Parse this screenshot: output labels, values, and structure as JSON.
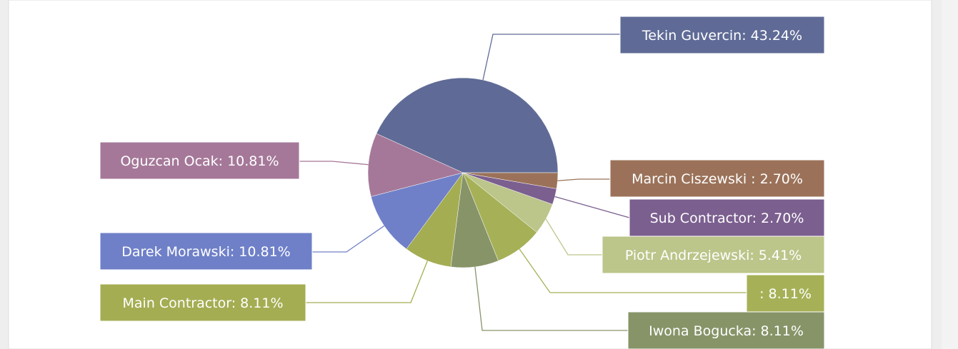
{
  "chart_data": {
    "type": "pie",
    "categories": [
      "Tekin Guvercin:",
      "Oguzcan Ocak:",
      "Darek Morawski:",
      "Main Contractor:",
      "Iwona Bogucka:",
      ":",
      "Piotr Andrzejewski:",
      "Sub Contractor:",
      "Marcin Ciszewski :"
    ],
    "values": [
      43.24,
      10.81,
      10.81,
      8.11,
      8.11,
      8.11,
      5.41,
      2.7,
      2.7
    ],
    "value_labels": [
      "43.24%",
      "10.81%",
      "10.81%",
      "8.11%",
      "8.11%",
      "8.11%",
      "5.41%",
      "2.70%",
      "2.70%"
    ],
    "colors": [
      "#5f6b96",
      "#a57899",
      "#6f80c8",
      "#a4ad52",
      "#879468",
      "#a6b157",
      "#bcc58a",
      "#7b5f8f",
      "#9b7259"
    ]
  }
}
